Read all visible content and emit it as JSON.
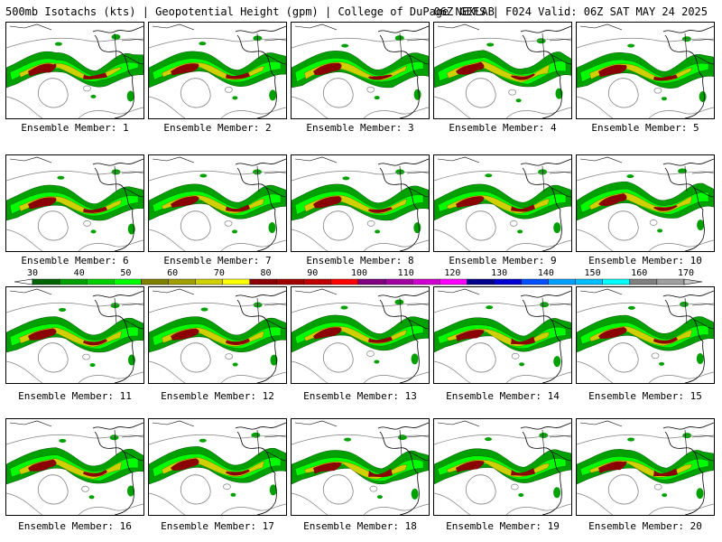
{
  "header": {
    "left": "500mb Isotachs (kts) | Geopotential Height (gpm) | College of DuPage NEXLAB",
    "right": "06Z GEFS | F024 Valid: 06Z SAT MAY 24 2025"
  },
  "panels": [
    {
      "label": "Ensemble Member: 1"
    },
    {
      "label": "Ensemble Member: 2"
    },
    {
      "label": "Ensemble Member: 3"
    },
    {
      "label": "Ensemble Member: 4"
    },
    {
      "label": "Ensemble Member: 5"
    },
    {
      "label": "Ensemble Member: 6"
    },
    {
      "label": "Ensemble Member: 7"
    },
    {
      "label": "Ensemble Member: 8"
    },
    {
      "label": "Ensemble Member: 9"
    },
    {
      "label": "Ensemble Member: 10"
    },
    {
      "label": "Ensemble Member: 11"
    },
    {
      "label": "Ensemble Member: 12"
    },
    {
      "label": "Ensemble Member: 13"
    },
    {
      "label": "Ensemble Member: 14"
    },
    {
      "label": "Ensemble Member: 15"
    },
    {
      "label": "Ensemble Member: 16"
    },
    {
      "label": "Ensemble Member: 17"
    },
    {
      "label": "Ensemble Member: 18"
    },
    {
      "label": "Ensemble Member: 19"
    },
    {
      "label": "Ensemble Member: 20"
    }
  ],
  "colorbar": {
    "ticks": [
      "30",
      "40",
      "50",
      "60",
      "70",
      "80",
      "90",
      "100",
      "110",
      "120",
      "130",
      "140",
      "150",
      "160",
      "170"
    ],
    "colors": [
      "#006400",
      "#00a000",
      "#00d000",
      "#00ff00",
      "#808000",
      "#a0a000",
      "#d0d000",
      "#ffff00",
      "#8b0000",
      "#a00000",
      "#c00000",
      "#ff0000",
      "#800080",
      "#a000a0",
      "#d000d0",
      "#ff00ff",
      "#00008b",
      "#0000d0",
      "#0050ff",
      "#00a0ff",
      "#00c0ff",
      "#00ffff",
      "#808080",
      "#a0a0a0",
      "#c8c8c8"
    ]
  },
  "map_colors": {
    "jet_outer": "#00a000",
    "jet_mid": "#00ff00",
    "jet_yellow": "#d0d000",
    "jet_core": "#8b0000",
    "coast": "#000000",
    "height": "#808080"
  }
}
